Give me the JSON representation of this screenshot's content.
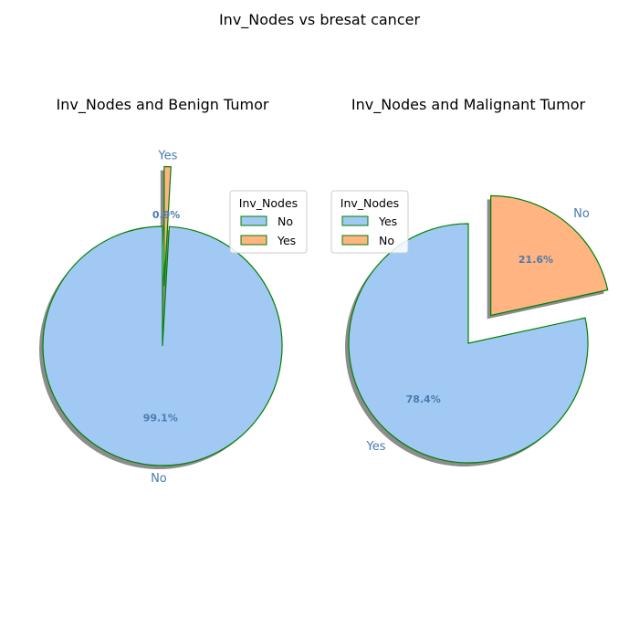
{
  "figure": {
    "title": "Inv_Nodes vs bresat cancer"
  },
  "chart_data": [
    {
      "type": "pie",
      "title": "Inv_Nodes and Benign Tumor",
      "labels": [
        "No",
        "Yes"
      ],
      "values": [
        99.1,
        0.9
      ],
      "autopct": [
        "99.1%",
        "0.9%"
      ],
      "explode": [
        0,
        0.5
      ],
      "colors": [
        "#a1c9f4",
        "#ffb482"
      ],
      "edgecolor": "#008000",
      "shadow": true,
      "start_angle_deg": 90,
      "legend": {
        "title": "Inv_Nodes",
        "entries": [
          "No",
          "Yes"
        ],
        "placement": "upper-right"
      }
    },
    {
      "type": "pie",
      "title": "Inv_Nodes and Malignant Tumor",
      "labels": [
        "Yes",
        "No"
      ],
      "values": [
        78.4,
        21.6
      ],
      "autopct": [
        "78.4%",
        "21.6%"
      ],
      "explode": [
        0,
        0.3
      ],
      "colors": [
        "#a1c9f4",
        "#ffb482"
      ],
      "edgecolor": "#008000",
      "shadow": true,
      "start_angle_deg": 90,
      "legend": {
        "title": "Inv_Nodes",
        "entries": [
          "Yes",
          "No"
        ],
        "placement": "upper-left"
      }
    }
  ]
}
